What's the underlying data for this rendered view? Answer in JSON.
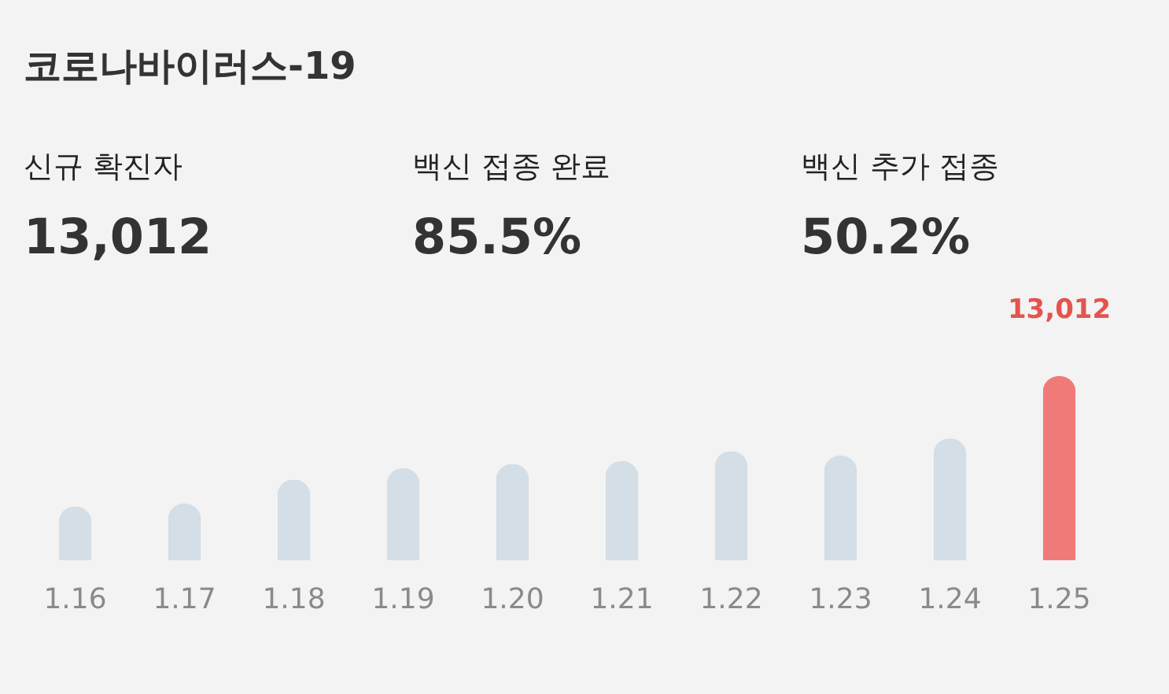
{
  "chart_data": {
    "type": "bar",
    "title": "코로나바이러스-19",
    "annotations": [
      "신규 확진자",
      "13,012",
      "백신 접종 완료",
      "85.5%",
      "백신 추가 접종",
      "50.2%"
    ],
    "categories": [
      "1.16",
      "1.17",
      "1.18",
      "1.19",
      "1.20",
      "1.21",
      "1.22",
      "1.23",
      "1.24",
      "1.25"
    ],
    "values": [
      3800,
      4000,
      5700,
      6500,
      6800,
      7000,
      7700,
      7400,
      8600,
      13012
    ],
    "colors": [
      "#d3dee6",
      "#d3dee6",
      "#d3dee6",
      "#d3dee6",
      "#d3dee6",
      "#d3dee6",
      "#d3dee6",
      "#d3dee6",
      "#d3dee6",
      "#f07a78"
    ],
    "value_labels": [
      null,
      null,
      null,
      null,
      null,
      null,
      null,
      null,
      null,
      "13,012"
    ],
    "grid": false
  }
}
